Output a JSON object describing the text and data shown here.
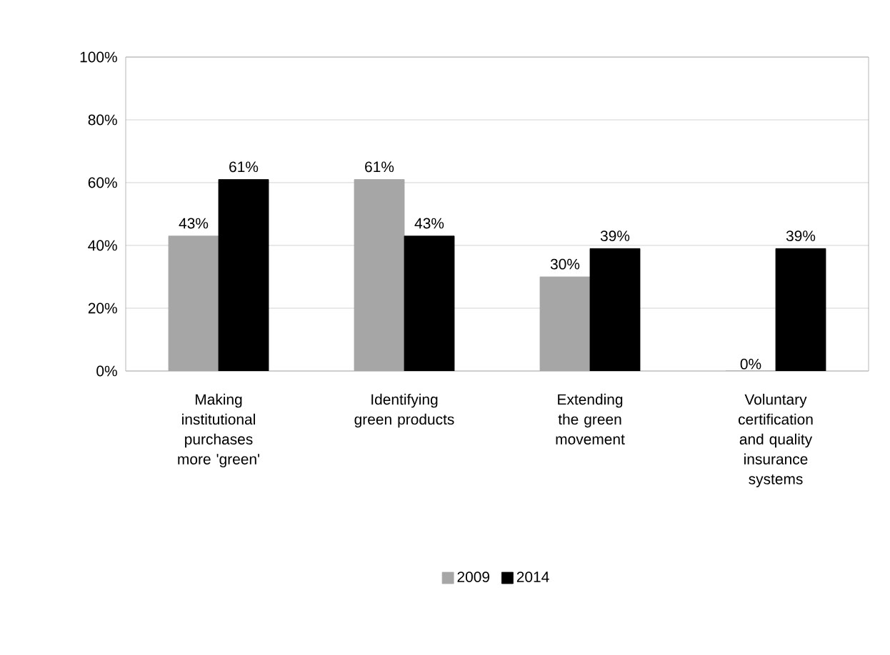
{
  "chart_data": {
    "type": "bar",
    "categories": [
      "Making institutional purchases more 'green'",
      "Identifying green products",
      "Extending the green movement",
      "Voluntary certification and quality insurance systems"
    ],
    "series": [
      {
        "name": "2009",
        "color": "#a6a6a6",
        "values": [
          43,
          61,
          30,
          0
        ],
        "value_labels": [
          "43%",
          "61%",
          "30%",
          "0%"
        ]
      },
      {
        "name": "2014",
        "color": "#000000",
        "values": [
          61,
          43,
          39,
          39
        ],
        "value_labels": [
          "61%",
          "43%",
          "39%",
          "39%"
        ]
      }
    ],
    "ylim": [
      0,
      100
    ],
    "yticks": [
      {
        "value": 0,
        "label": "0%"
      },
      {
        "value": 20,
        "label": "20%"
      },
      {
        "value": 40,
        "label": "40%"
      },
      {
        "value": 60,
        "label": "60%"
      },
      {
        "value": 80,
        "label": "80%"
      },
      {
        "value": 100,
        "label": "100%"
      }
    ],
    "grid": "y",
    "legend": "bottom"
  }
}
